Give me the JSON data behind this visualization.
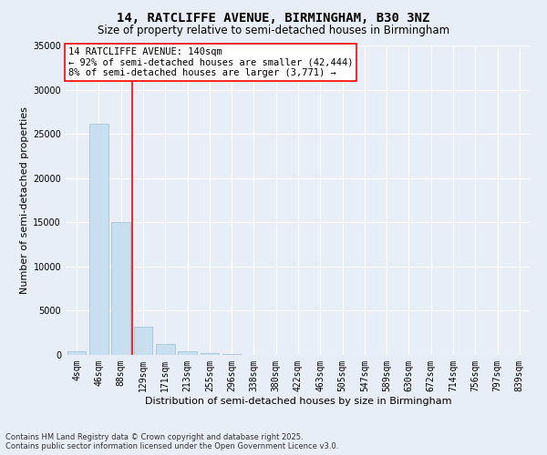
{
  "title": "14, RATCLIFFE AVENUE, BIRMINGHAM, B30 3NZ",
  "subtitle": "Size of property relative to semi-detached houses in Birmingham",
  "xlabel": "Distribution of semi-detached houses by size in Birmingham",
  "ylabel": "Number of semi-detached properties",
  "categories": [
    "4sqm",
    "46sqm",
    "88sqm",
    "129sqm",
    "171sqm",
    "213sqm",
    "255sqm",
    "296sqm",
    "338sqm",
    "380sqm",
    "422sqm",
    "463sqm",
    "505sqm",
    "547sqm",
    "589sqm",
    "630sqm",
    "672sqm",
    "714sqm",
    "756sqm",
    "797sqm",
    "839sqm"
  ],
  "values": [
    380,
    26100,
    15000,
    3200,
    1200,
    420,
    200,
    80,
    0,
    0,
    0,
    0,
    0,
    0,
    0,
    0,
    0,
    0,
    0,
    0,
    0
  ],
  "bar_color": "#c8dff0",
  "bar_edge_color": "#a0bdd4",
  "annotation_text_line1": "14 RATCLIFFE AVENUE: 140sqm",
  "annotation_text_line2": "← 92% of semi-detached houses are smaller (42,444)",
  "annotation_text_line3": "8% of semi-detached houses are larger (3,771) →",
  "ylim": [
    0,
    35000
  ],
  "yticks": [
    0,
    5000,
    10000,
    15000,
    20000,
    25000,
    30000,
    35000
  ],
  "background_color": "#e8eef8",
  "grid_color": "#ffffff",
  "footer_line1": "Contains HM Land Registry data © Crown copyright and database right 2025.",
  "footer_line2": "Contains public sector information licensed under the Open Government Licence v3.0.",
  "title_fontsize": 10,
  "subtitle_fontsize": 8.5,
  "axis_label_fontsize": 8,
  "tick_fontsize": 7,
  "annotation_fontsize": 7.5,
  "footer_fontsize": 6
}
